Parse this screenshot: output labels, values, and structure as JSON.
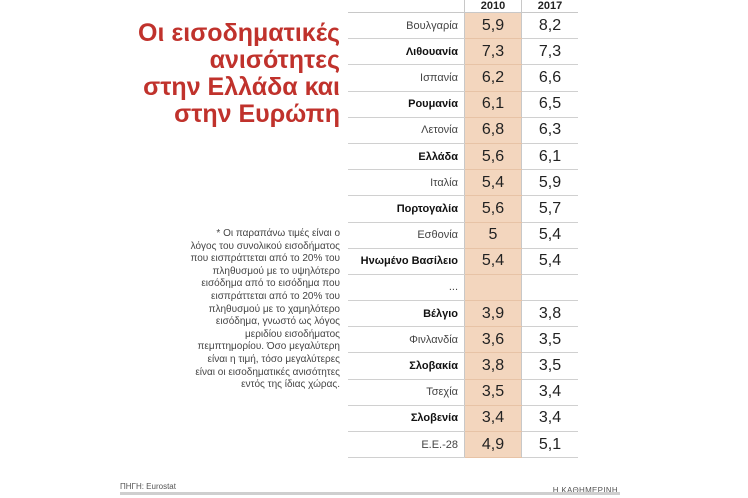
{
  "title_lines": [
    "Οι εισοδηματικές",
    "ανισότητες",
    "στην Ελλάδα και",
    "στην Ευρώπη"
  ],
  "note": "* Οι παραπάνω τιμές είναι ο λόγος του συνολικού εισοδήματος που εισπράττεται από το 20% του πληθυσμού με το υψηλότερο εισόδημα από το εισόδημα που εισπράττεται από το 20% του πληθυσμού με το χαμηλότερο εισόδημα, γνωστό ως λόγος μεριδίου εισοδήματος πεμπτημορίου. Όσο μεγαλύτερη είναι η τιμή, τόσο μεγαλύτερες είναι οι εισοδηματικές ανισότητες εντός της ίδιας χώρας.",
  "source": "ΠΗΓΗ: Eurostat",
  "brand": "Η ΚΑΘΗΜΕΡΙΝΗ",
  "colors": {
    "title": "#c0322c",
    "highlight_column": "#f3d6be"
  },
  "chart_data": {
    "type": "table",
    "columns": [
      "2010",
      "2017"
    ],
    "rows": [
      {
        "country": "Βουλγαρία",
        "v2010": "5,9",
        "v2017": "8,2",
        "bold": false
      },
      {
        "country": "Λιθουανία",
        "v2010": "7,3",
        "v2017": "7,3",
        "bold": true
      },
      {
        "country": "Ισπανία",
        "v2010": "6,2",
        "v2017": "6,6",
        "bold": false
      },
      {
        "country": "Ρουμανία",
        "v2010": "6,1",
        "v2017": "6,5",
        "bold": true
      },
      {
        "country": "Λετονία",
        "v2010": "6,8",
        "v2017": "6,3",
        "bold": false
      },
      {
        "country": "Ελλάδα",
        "v2010": "5,6",
        "v2017": "6,1",
        "bold": true
      },
      {
        "country": "Ιταλία",
        "v2010": "5,4",
        "v2017": "5,9",
        "bold": false
      },
      {
        "country": "Πορτογαλία",
        "v2010": "5,6",
        "v2017": "5,7",
        "bold": true
      },
      {
        "country": "Εσθονία",
        "v2010": "5",
        "v2017": "5,4",
        "bold": false
      },
      {
        "country": "Ηνωμένο Βασίλειο",
        "v2010": "5,4",
        "v2017": "5,4",
        "bold": true
      },
      {
        "country": "...",
        "v2010": "",
        "v2017": "",
        "bold": false
      },
      {
        "country": "Βέλγιο",
        "v2010": "3,9",
        "v2017": "3,8",
        "bold": true
      },
      {
        "country": "Φινλανδία",
        "v2010": "3,6",
        "v2017": "3,5",
        "bold": false
      },
      {
        "country": "Σλοβακία",
        "v2010": "3,8",
        "v2017": "3,5",
        "bold": true
      },
      {
        "country": "Τσεχία",
        "v2010": "3,5",
        "v2017": "3,4",
        "bold": false
      },
      {
        "country": "Σλοβενία",
        "v2010": "3,4",
        "v2017": "3,4",
        "bold": true
      },
      {
        "country": "Ε.Ε.-28",
        "v2010": "4,9",
        "v2017": "5,1",
        "bold": false
      }
    ]
  }
}
